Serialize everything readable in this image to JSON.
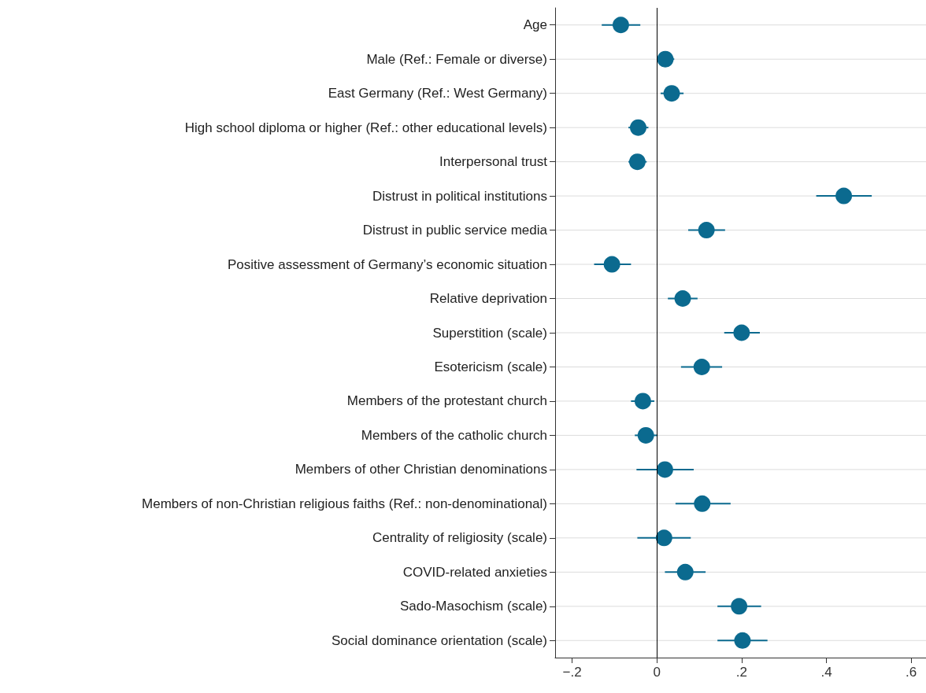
{
  "chart_data": {
    "type": "scatter",
    "orientation": "horizontal",
    "categories": [
      "Age",
      "Male (Ref.: Female or diverse)",
      "East Germany (Ref.: West Germany)",
      "High school diploma or higher (Ref.: other educational levels)",
      "Interpersonal trust",
      "Distrust in political institutions",
      "Distrust in public service media",
      "Positive assessment of Germany’s economic situation",
      "Relative deprivation",
      "Superstition (scale)",
      "Esotericism (scale)",
      "Members of the protestant church",
      "Members of the catholic church",
      "Members of other Christian denominations",
      "Members of non-Christian religious faiths (Ref.: non-denominational)",
      "Centrality of religiosity (scale)",
      "COVID-related anxieties",
      "Sado-Masochism (scale)",
      "Social dominance orientation (scale)"
    ],
    "series": [
      {
        "color": "#0b6a8f",
        "values": [
          -0.085,
          0.02,
          0.035,
          -0.044,
          -0.046,
          0.441,
          0.117,
          -0.106,
          0.061,
          0.2,
          0.106,
          -0.033,
          -0.026,
          0.019,
          0.107,
          0.017,
          0.067,
          0.194,
          0.202
        ],
        "errors": [
          [
            -0.13,
            -0.039
          ],
          [
            0.004,
            0.041
          ],
          [
            0.009,
            0.063
          ],
          [
            -0.067,
            -0.02
          ],
          [
            -0.067,
            -0.024
          ],
          [
            0.376,
            0.507
          ],
          [
            0.074,
            0.161
          ],
          [
            -0.148,
            -0.061
          ],
          [
            0.026,
            0.096
          ],
          [
            0.159,
            0.243
          ],
          [
            0.057,
            0.154
          ],
          [
            -0.061,
            -0.006
          ],
          [
            -0.052,
            0.002
          ],
          [
            -0.048,
            0.087
          ],
          [
            0.044,
            0.174
          ],
          [
            -0.046,
            0.08
          ],
          [
            0.019,
            0.115
          ],
          [
            0.143,
            0.246
          ],
          [
            0.143,
            0.261
          ]
        ]
      }
    ],
    "xlim": [
      -0.24,
      0.635
    ],
    "xticks": [
      {
        "value": -0.2,
        "label": "−.2"
      },
      0,
      {
        "value": 0.2,
        "label": ".2"
      },
      {
        "value": 0.4,
        "label": ".4"
      },
      {
        "value": 0.6,
        "label": ".6"
      }
    ],
    "ref_lines": [
      {
        "axis": "x",
        "value": 0,
        "color": "#000000"
      }
    ],
    "grid": "y",
    "marker": "circle"
  }
}
